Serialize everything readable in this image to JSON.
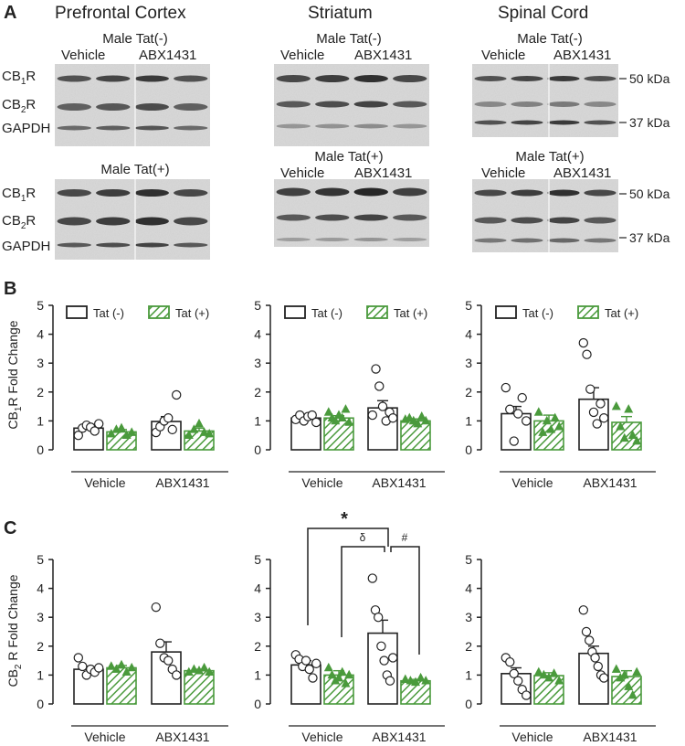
{
  "panel_labels": {
    "a": "A",
    "b": "B",
    "c": "C"
  },
  "blots": {
    "regions": [
      "Prefrontal Cortex",
      "Striatum",
      "Spinal Cord"
    ],
    "rows": [
      {
        "group": "Male Tat(-)",
        "treatments": [
          "Vehicle",
          "ABX1431"
        ]
      },
      {
        "group": "Male Tat(+)",
        "treatments": [
          "Vehicle",
          "ABX1431"
        ]
      }
    ],
    "proteins": {
      "cb1_main": "CB",
      "cb1_sub": "1",
      "cb2_main": "CB",
      "cb2_sub": "2",
      "r": "R",
      "gapdh": "GAPDH"
    },
    "markers": [
      "50 kDa",
      "37 kDa"
    ]
  },
  "legend": {
    "tat_neg": "Tat (-)",
    "tat_pos": "Tat (+)"
  },
  "colors": {
    "green": "#4a9a3c",
    "black": "#222222"
  },
  "annotations": {
    "star": "*",
    "delta": "δ",
    "hash": "#"
  },
  "ylabels": {
    "b": {
      "main": "CB",
      "sub": "1",
      "rest": "R Fold Change"
    },
    "c": {
      "main": "CB",
      "sub": "2",
      "rest": " R Fold Change"
    }
  },
  "chart_data": [
    {
      "panel": "B",
      "region": "Prefrontal Cortex",
      "type": "bar",
      "categories": [
        "Vehicle",
        "ABX1431"
      ],
      "ylim": [
        0,
        5
      ],
      "yticks": [
        "0",
        "1",
        "2",
        "3",
        "4",
        "5"
      ],
      "legend": "top",
      "series": [
        {
          "name": "Tat (-)",
          "values": [
            0.75,
            0.98
          ],
          "sem": [
            0.1,
            0.17
          ],
          "points": [
            [
              0.5,
              0.75,
              0.85,
              0.78,
              0.65,
              0.9
            ],
            [
              0.6,
              0.8,
              1.0,
              1.1,
              0.7,
              1.9
            ]
          ]
        },
        {
          "name": "Tat (+)",
          "values": [
            0.62,
            0.65
          ],
          "sem": [
            0.08,
            0.1
          ],
          "points": [
            [
              0.55,
              0.7,
              0.75,
              0.5,
              0.6
            ],
            [
              0.5,
              0.7,
              0.9,
              0.6,
              0.55
            ]
          ]
        }
      ]
    },
    {
      "panel": "B",
      "region": "Striatum",
      "type": "bar",
      "categories": [
        "Vehicle",
        "ABX1431"
      ],
      "ylim": [
        0,
        5
      ],
      "yticks": [
        "0",
        "1",
        "2",
        "3",
        "4",
        "5"
      ],
      "legend": "top",
      "series": [
        {
          "name": "Tat (-)",
          "values": [
            1.1,
            1.45
          ],
          "sem": [
            0.1,
            0.25
          ],
          "points": [
            [
              1.05,
              1.2,
              1.0,
              1.15,
              1.2,
              0.95
            ],
            [
              1.2,
              2.8,
              2.2,
              1.5,
              1.0,
              1.3,
              1.1
            ]
          ]
        },
        {
          "name": "Tat (+)",
          "values": [
            1.1,
            1.0
          ],
          "sem": [
            0.08,
            0.07
          ],
          "points": [
            [
              1.3,
              1.1,
              1.0,
              1.2,
              1.1,
              1.4,
              0.95
            ],
            [
              1.05,
              1.1,
              1.0,
              0.9,
              1.15,
              1.0
            ]
          ]
        }
      ]
    },
    {
      "panel": "B",
      "region": "Spinal Cord",
      "type": "bar",
      "categories": [
        "Vehicle",
        "ABX1431"
      ],
      "ylim": [
        0,
        5
      ],
      "yticks": [
        "0",
        "1",
        "2",
        "3",
        "4",
        "5"
      ],
      "legend": "top",
      "series": [
        {
          "name": "Tat (-)",
          "values": [
            1.25,
            1.75
          ],
          "sem": [
            0.25,
            0.4
          ],
          "points": [
            [
              2.15,
              1.4,
              0.3,
              1.25,
              1.8,
              1.0
            ],
            [
              3.7,
              3.3,
              2.1,
              1.3,
              0.9,
              1.6,
              1.1
            ]
          ]
        },
        {
          "name": "Tat (+)",
          "values": [
            1.0,
            0.95
          ],
          "sem": [
            0.2,
            0.2
          ],
          "points": [
            [
              1.3,
              0.6,
              1.0,
              0.7,
              1.1,
              0.8
            ],
            [
              1.5,
              0.8,
              0.4,
              1.4,
              0.5,
              0.3
            ]
          ]
        }
      ]
    },
    {
      "panel": "C",
      "region": "Prefrontal Cortex",
      "type": "bar",
      "categories": [
        "Vehicle",
        "ABX1431"
      ],
      "ylim": [
        0,
        5
      ],
      "yticks": [
        "0",
        "1",
        "2",
        "3",
        "4",
        "5"
      ],
      "series": [
        {
          "name": "Tat (-)",
          "values": [
            1.2,
            1.8
          ],
          "sem": [
            0.1,
            0.35
          ],
          "points": [
            [
              1.6,
              1.3,
              1.0,
              1.2,
              1.1,
              1.25
            ],
            [
              3.35,
              2.1,
              1.6,
              1.5,
              1.2,
              1.0
            ]
          ]
        },
        {
          "name": "Tat (+)",
          "values": [
            1.25,
            1.15
          ],
          "sem": [
            0.08,
            0.05
          ],
          "points": [
            [
              1.3,
              1.2,
              1.35,
              1.1,
              1.25
            ],
            [
              1.1,
              1.2,
              1.15,
              1.25,
              1.1
            ]
          ]
        }
      ]
    },
    {
      "panel": "C",
      "region": "Striatum",
      "type": "bar",
      "categories": [
        "Vehicle",
        "ABX1431"
      ],
      "ylim": [
        0,
        5
      ],
      "yticks": [
        "0",
        "1",
        "2",
        "3",
        "4",
        "5"
      ],
      "series": [
        {
          "name": "Tat (-)",
          "values": [
            1.35,
            2.45
          ],
          "sem": [
            0.15,
            0.45
          ],
          "points": [
            [
              1.7,
              1.55,
              1.3,
              1.5,
              1.2,
              0.9,
              1.4
            ],
            [
              4.35,
              3.25,
              3.0,
              2.0,
              1.5,
              1.0,
              0.8,
              1.6
            ]
          ]
        },
        {
          "name": "Tat (+)",
          "values": [
            1.0,
            0.8
          ],
          "sem": [
            0.15,
            0.05
          ],
          "points": [
            [
              1.25,
              1.0,
              0.8,
              0.9,
              1.1,
              0.7,
              1.0
            ],
            [
              0.85,
              0.8,
              0.75,
              0.9,
              0.8
            ]
          ]
        }
      ]
    },
    {
      "panel": "C",
      "region": "Spinal Cord",
      "type": "bar",
      "categories": [
        "Vehicle",
        "ABX1431"
      ],
      "ylim": [
        0,
        5
      ],
      "yticks": [
        "0",
        "1",
        "2",
        "3",
        "4",
        "5"
      ],
      "series": [
        {
          "name": "Tat (-)",
          "values": [
            1.05,
            1.75
          ],
          "sem": [
            0.2,
            0.25
          ],
          "points": [
            [
              1.6,
              1.45,
              1.05,
              0.8,
              0.5,
              0.3
            ],
            [
              3.25,
              2.5,
              2.2,
              1.8,
              1.6,
              1.3,
              1.0,
              0.9
            ]
          ]
        },
        {
          "name": "Tat (+)",
          "values": [
            0.98,
            0.95
          ],
          "sem": [
            0.1,
            0.2
          ],
          "points": [
            [
              1.1,
              1.0,
              0.9,
              1.05,
              0.8
            ],
            [
              1.2,
              0.9,
              1.0,
              0.6,
              0.3,
              1.1
            ]
          ]
        }
      ]
    }
  ]
}
